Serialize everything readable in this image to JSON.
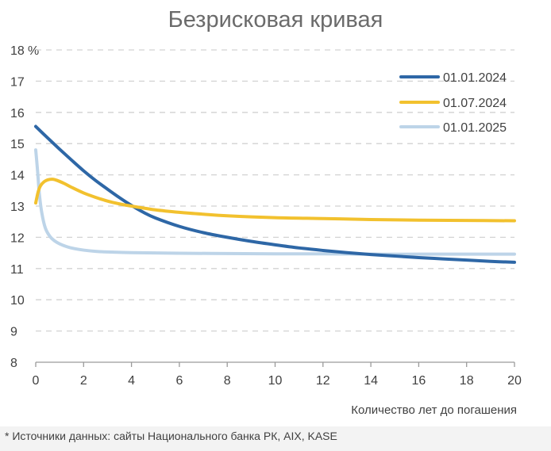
{
  "chart_data": {
    "type": "line",
    "title": "Безрисковая кривая",
    "xlabel": "Количество лет до погашения",
    "ylabel": "%",
    "xlim": [
      0,
      20
    ],
    "ylim": [
      8,
      18
    ],
    "xticks": [
      0,
      2,
      4,
      6,
      8,
      10,
      12,
      14,
      16,
      18,
      20
    ],
    "yticks": [
      8,
      9,
      10,
      11,
      12,
      13,
      14,
      15,
      16,
      17,
      18
    ],
    "grid": "horizontal dashed",
    "legend_position": "top-right",
    "series": [
      {
        "name": "01.01.2024",
        "color": "#2e67a6",
        "x": [
          0,
          0.5,
          1,
          1.5,
          2,
          2.5,
          3,
          3.5,
          4,
          4.5,
          5,
          6,
          7,
          8,
          9,
          10,
          11,
          12,
          13,
          14,
          15,
          16,
          17,
          18,
          19,
          20
        ],
        "y": [
          15.55,
          15.18,
          14.82,
          14.47,
          14.13,
          13.82,
          13.54,
          13.27,
          13.02,
          12.8,
          12.62,
          12.35,
          12.15,
          12.0,
          11.87,
          11.76,
          11.66,
          11.58,
          11.51,
          11.45,
          11.4,
          11.35,
          11.31,
          11.27,
          11.23,
          11.2
        ]
      },
      {
        "name": "01.07.2024",
        "color": "#f2c12e",
        "x": [
          0,
          0.1,
          0.2,
          0.35,
          0.5,
          0.7,
          0.9,
          1.2,
          1.5,
          2,
          2.5,
          3,
          3.5,
          4,
          5,
          6,
          7,
          8,
          10,
          12,
          14,
          16,
          18,
          20
        ],
        "y": [
          13.1,
          13.45,
          13.65,
          13.78,
          13.84,
          13.86,
          13.82,
          13.72,
          13.6,
          13.42,
          13.28,
          13.16,
          13.07,
          13.0,
          12.88,
          12.8,
          12.74,
          12.69,
          12.63,
          12.6,
          12.57,
          12.55,
          12.54,
          12.53
        ]
      },
      {
        "name": "01.01.2025",
        "color": "#bdd4e8",
        "x": [
          0,
          0.08,
          0.15,
          0.25,
          0.4,
          0.6,
          0.8,
          1,
          1.3,
          1.6,
          2,
          2.5,
          3,
          4,
          5,
          6,
          8,
          10,
          12,
          14,
          16,
          18,
          20
        ],
        "y": [
          14.8,
          14.1,
          13.4,
          12.8,
          12.3,
          12.02,
          11.88,
          11.79,
          11.7,
          11.64,
          11.59,
          11.55,
          11.53,
          11.51,
          11.5,
          11.49,
          11.48,
          11.47,
          11.47,
          11.46,
          11.46,
          11.46,
          11.46
        ]
      }
    ]
  },
  "footnote": "* Источники данных: сайты Национального банка РК, AIX, KASE"
}
